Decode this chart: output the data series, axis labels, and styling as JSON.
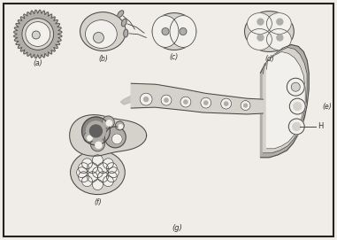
{
  "bg_color": "#f0ede8",
  "border_color": "#222222",
  "title_bottom": "(g)",
  "label_a": "(a)",
  "label_b": "(b)",
  "label_c": "(c)",
  "label_d": "(d)",
  "label_e": "(e)",
  "label_f": "(f)",
  "label_H": "H",
  "fig_width": 3.81,
  "fig_height": 2.71,
  "dpi": 100,
  "very_light": "#e8e5e0",
  "light_gray": "#d5d2cc",
  "medium_gray": "#b0ada8",
  "dark_gray": "#888580",
  "darker_gray": "#606060",
  "white_ish": "#f2f0ec",
  "text_color": "#333333",
  "line_color": "#444444",
  "line_width": 0.7
}
